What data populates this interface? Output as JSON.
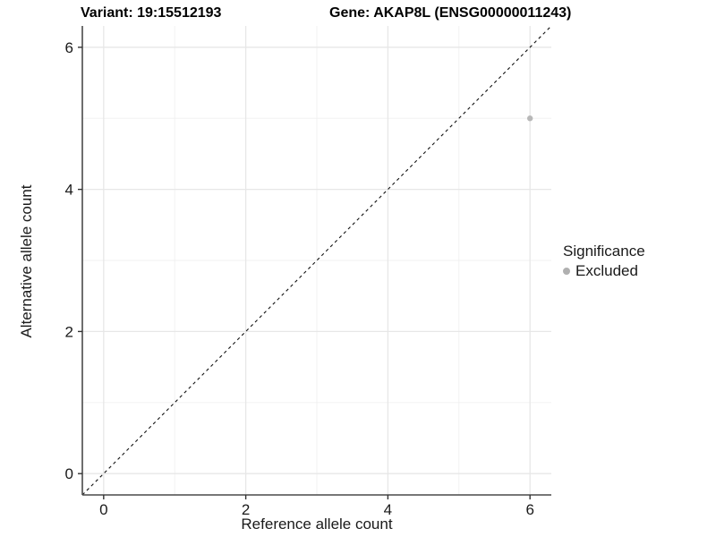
{
  "title": {
    "variant": "Variant: 19:15512193",
    "gene": "Gene: AKAP8L (ENSG00000011243)"
  },
  "axes": {
    "x": {
      "label": "Reference allele count",
      "ticks": [
        0,
        2,
        4,
        6
      ],
      "minor_ticks": [
        1,
        3,
        5
      ],
      "range": [
        -0.3,
        6.3
      ]
    },
    "y": {
      "label": "Alternative allele count",
      "ticks": [
        0,
        2,
        4,
        6
      ],
      "minor_ticks": [
        1,
        3,
        5
      ],
      "range": [
        -0.3,
        6.3
      ]
    }
  },
  "legend": {
    "title": "Significance",
    "items": [
      {
        "label": "Excluded",
        "color": "#b0b0b0"
      }
    ]
  },
  "chart_data": {
    "type": "scatter",
    "title": "Variant: 19:15512193    Gene: AKAP8L (ENSG00000011243)",
    "xlabel": "Reference allele count",
    "ylabel": "Alternative allele count",
    "xlim": [
      -0.3,
      6.3
    ],
    "ylim": [
      -0.3,
      6.3
    ],
    "x_ticks": [
      0,
      2,
      4,
      6
    ],
    "y_ticks": [
      0,
      2,
      4,
      6
    ],
    "minor_grid": [
      1,
      3,
      5
    ],
    "grid": "on",
    "legend_position": "right",
    "series": [
      {
        "name": "Excluded",
        "color": "#b8b8b8",
        "points": [
          {
            "x": 6,
            "y": 5
          }
        ]
      }
    ],
    "reference_line": {
      "type": "identity y=x",
      "style": "dashed",
      "color": "#111111"
    }
  },
  "colors": {
    "background": "#ffffff",
    "major_grid": "#e7e7e7",
    "minor_grid": "#f0f0f0",
    "axis_line": "#4a4a4a",
    "tick_mark": "#333333",
    "tick_label": "#1a1a1a",
    "point": "#b8b8b8"
  }
}
